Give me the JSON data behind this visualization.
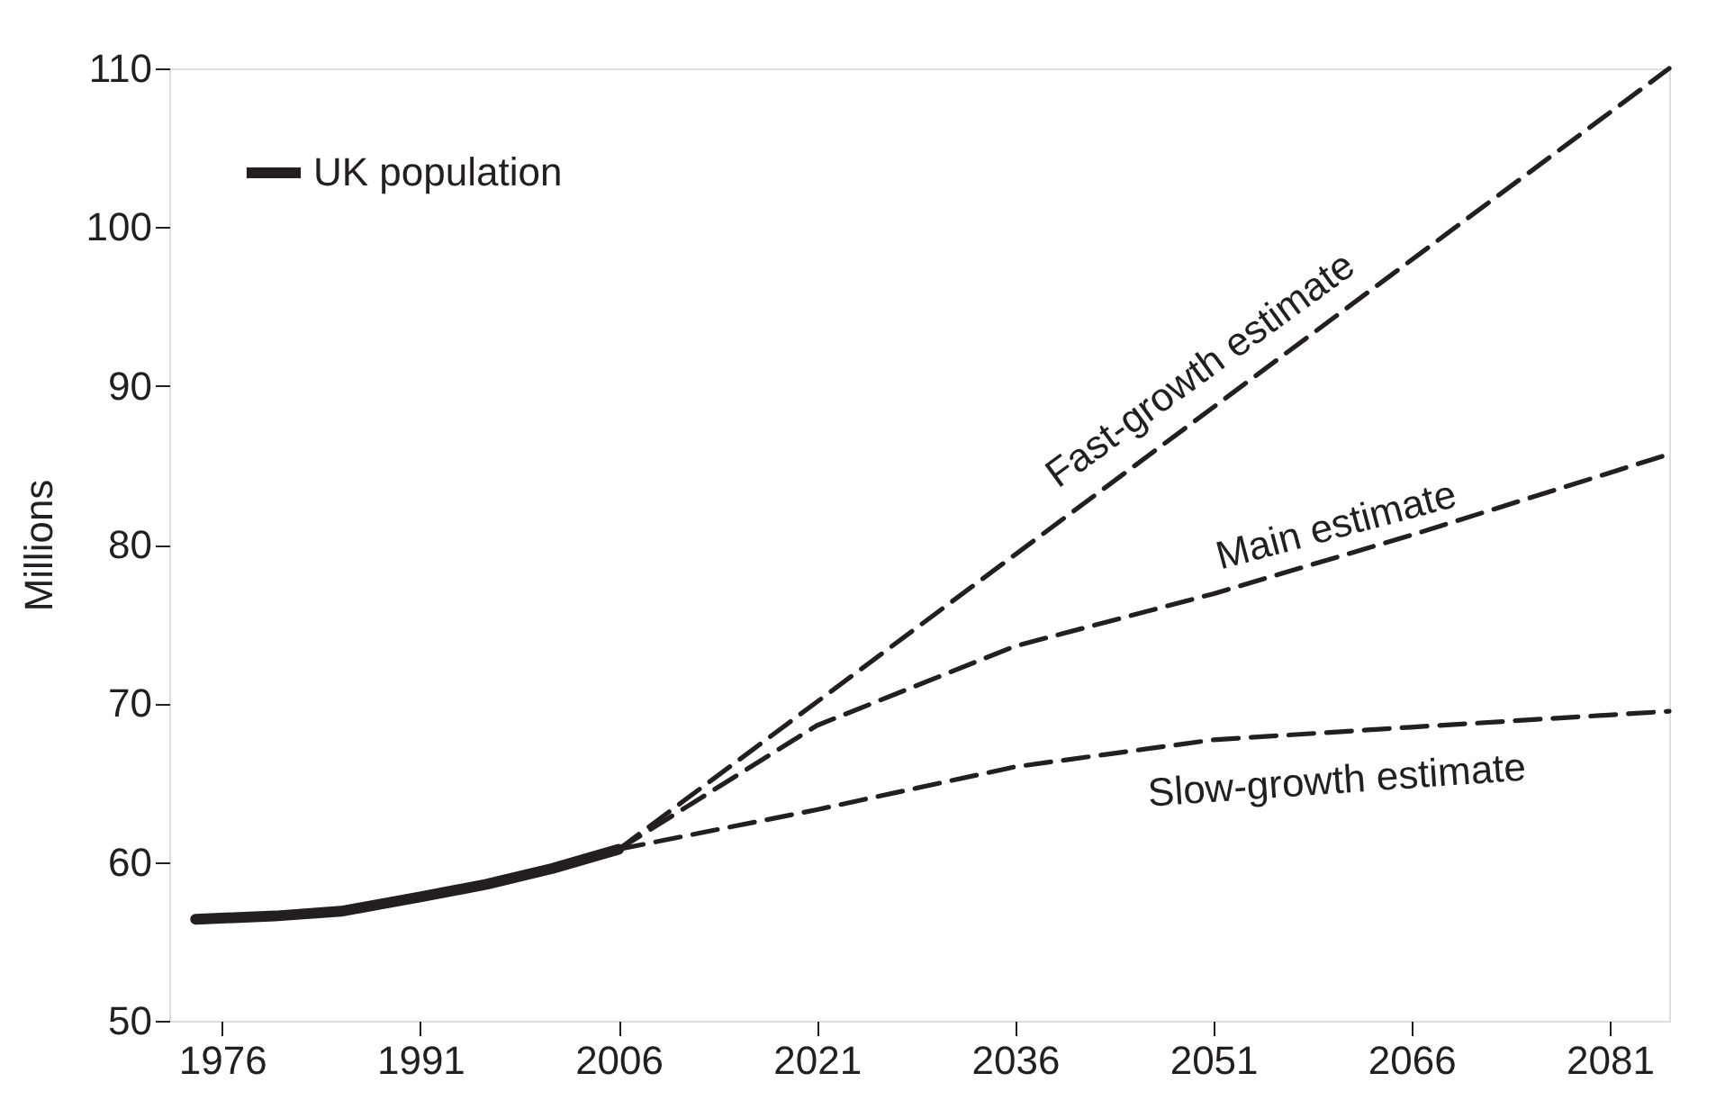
{
  "chart_data": {
    "type": "line",
    "ylabel": "Millions",
    "xlim": [
      1972,
      2085.5
    ],
    "xticks": [
      1976,
      1991,
      2006,
      2021,
      2036,
      2051,
      2066,
      2081
    ],
    "ylim": [
      50,
      110
    ],
    "yticks": [
      50,
      60,
      70,
      80,
      90,
      100,
      110
    ],
    "grid": false,
    "legend": "top left",
    "marker": "none",
    "series": [
      {
        "name": "UK population",
        "color": "#231f20",
        "line_style": "solid",
        "x": [
          1974,
          1980,
          1985,
          1991,
          1996,
          2001,
          2006
        ],
        "values": [
          56.4,
          56.6,
          56.9,
          57.8,
          58.6,
          59.6,
          60.8
        ]
      },
      {
        "name": "Fast-growth estimate",
        "color": "#231f20",
        "line_style": "dashed",
        "x": [
          2006,
          2085.5
        ],
        "values": [
          60.8,
          110
        ]
      },
      {
        "name": "Main estimate",
        "color": "#231f20",
        "line_style": "dashed",
        "x": [
          2006,
          2021,
          2036,
          2051,
          2066,
          2085.5
        ],
        "values": [
          60.8,
          68.6,
          73.6,
          76.9,
          80.6,
          85.7
        ]
      },
      {
        "name": "Slow-growth estimate",
        "color": "#231f20",
        "line_style": "dashed",
        "x": [
          2006,
          2021,
          2036,
          2051,
          2066,
          2085.5
        ],
        "values": [
          60.8,
          63.3,
          66.0,
          67.7,
          68.5,
          69.5
        ]
      }
    ]
  }
}
